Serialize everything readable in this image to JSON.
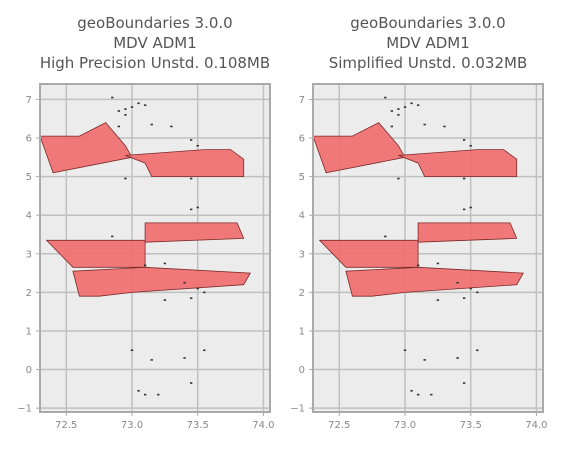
{
  "chart_data": [
    {
      "type": "map",
      "title_lines": [
        "geoBoundaries 3.0.0",
        "MDV ADM1",
        "High Precision Unstd. 0.108MB"
      ],
      "xlim": [
        72.3,
        74.05
      ],
      "ylim": [
        -1.1,
        7.4
      ],
      "xticks": [
        72.5,
        73.0,
        73.5,
        74.0
      ],
      "xtick_labels": [
        "72.5",
        "73.0",
        "73.5",
        "74.0"
      ],
      "yticks": [
        -1,
        0,
        1,
        2,
        3,
        4,
        5,
        6,
        7
      ],
      "ytick_labels": [
        "−1",
        "0",
        "1",
        "2",
        "3",
        "4",
        "5",
        "6",
        "7"
      ],
      "grid": true,
      "colors": {
        "fill": "#f26b6b",
        "edge": "#7a2a2a",
        "island": "#333333",
        "plot_bg": "#ececec",
        "grid": "#c0c0c0",
        "axes": "#aaaaaa"
      }
    },
    {
      "type": "map",
      "title_lines": [
        "geoBoundaries 3.0.0",
        "MDV ADM1",
        "Simplified Unstd. 0.032MB"
      ],
      "xlim": [
        72.3,
        74.05
      ],
      "ylim": [
        -1.1,
        7.4
      ],
      "xticks": [
        72.5,
        73.0,
        73.5,
        74.0
      ],
      "xtick_labels": [
        "72.5",
        "73.0",
        "73.5",
        "74.0"
      ],
      "yticks": [
        -1,
        0,
        1,
        2,
        3,
        4,
        5,
        6,
        7
      ],
      "ytick_labels": [
        "−1",
        "0",
        "1",
        "2",
        "3",
        "4",
        "5",
        "6",
        "7"
      ],
      "grid": true,
      "colors": {
        "fill": "#f26b6b",
        "edge": "#7a2a2a",
        "island": "#333333",
        "plot_bg": "#ececec",
        "grid": "#c0c0c0",
        "axes": "#aaaaaa"
      }
    }
  ],
  "regions": [
    [
      [
        72.3,
        6.05
      ],
      [
        72.6,
        6.05
      ],
      [
        72.8,
        6.4
      ],
      [
        72.95,
        5.8
      ],
      [
        73.0,
        5.5
      ],
      [
        72.4,
        5.1
      ]
    ],
    [
      [
        72.95,
        5.55
      ],
      [
        73.55,
        5.7
      ],
      [
        73.75,
        5.7
      ],
      [
        73.85,
        5.45
      ],
      [
        73.85,
        5.0
      ],
      [
        73.15,
        5.0
      ],
      [
        73.1,
        5.35
      ]
    ],
    [
      [
        73.1,
        3.8
      ],
      [
        73.8,
        3.8
      ],
      [
        73.85,
        3.4
      ],
      [
        73.1,
        3.3
      ]
    ],
    [
      [
        72.35,
        3.35
      ],
      [
        73.1,
        3.35
      ],
      [
        73.1,
        2.65
      ],
      [
        72.55,
        2.65
      ],
      [
        72.45,
        3.0
      ]
    ],
    [
      [
        72.55,
        2.55
      ],
      [
        73.1,
        2.65
      ],
      [
        73.9,
        2.5
      ],
      [
        73.85,
        2.2
      ],
      [
        73.0,
        2.0
      ],
      [
        72.75,
        1.9
      ],
      [
        72.6,
        1.9
      ]
    ]
  ],
  "islands": [
    [
      72.85,
      7.05
    ],
    [
      73.05,
      6.9
    ],
    [
      73.1,
      6.85
    ],
    [
      73.0,
      6.8
    ],
    [
      72.95,
      6.75
    ],
    [
      72.9,
      6.7
    ],
    [
      72.95,
      6.6
    ],
    [
      73.15,
      6.35
    ],
    [
      73.3,
      6.3
    ],
    [
      72.9,
      6.3
    ],
    [
      73.45,
      5.95
    ],
    [
      73.5,
      5.8
    ],
    [
      73.45,
      4.95
    ],
    [
      72.95,
      4.95
    ],
    [
      73.5,
      4.2
    ],
    [
      73.45,
      4.15
    ],
    [
      72.85,
      3.45
    ],
    [
      73.25,
      2.75
    ],
    [
      73.1,
      2.7
    ],
    [
      73.4,
      2.25
    ],
    [
      73.5,
      2.1
    ],
    [
      73.55,
      2.0
    ],
    [
      73.45,
      1.85
    ],
    [
      73.25,
      1.8
    ],
    [
      73.0,
      0.5
    ],
    [
      73.55,
      0.5
    ],
    [
      73.4,
      0.3
    ],
    [
      73.15,
      0.25
    ],
    [
      73.45,
      -0.35
    ],
    [
      73.05,
      -0.55
    ],
    [
      73.1,
      -0.65
    ],
    [
      73.2,
      -0.65
    ]
  ]
}
